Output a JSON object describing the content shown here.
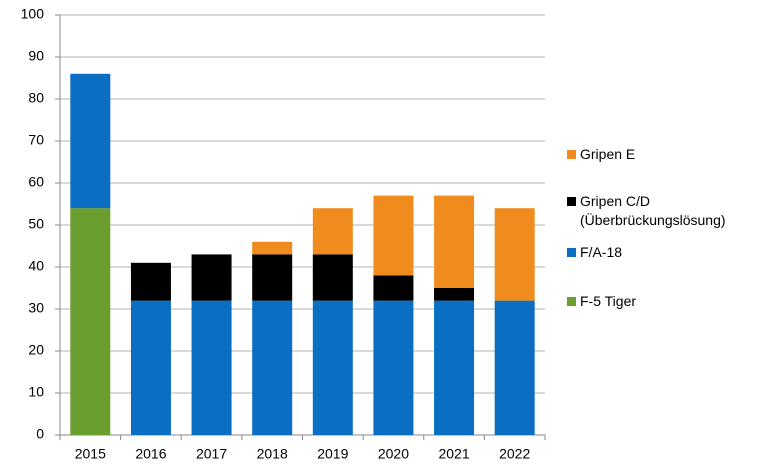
{
  "chart_data": {
    "type": "bar",
    "stacked": true,
    "categories": [
      "2015",
      "2016",
      "2017",
      "2018",
      "2019",
      "2020",
      "2021",
      "2022"
    ],
    "series": [
      {
        "name": "F-5 Tiger",
        "color": "#6a9e2f",
        "values": [
          54,
          0,
          0,
          0,
          0,
          0,
          0,
          0
        ]
      },
      {
        "name": "F/A-18",
        "color": "#0a6fc2",
        "values": [
          32,
          32,
          32,
          32,
          32,
          32,
          32,
          32
        ]
      },
      {
        "name": "Gripen C/D (Überbrückungslösung)",
        "color": "#000000",
        "values": [
          0,
          9,
          11,
          11,
          11,
          6,
          3,
          0
        ]
      },
      {
        "name": "Gripen E",
        "color": "#f08c1e",
        "values": [
          0,
          0,
          0,
          3,
          11,
          19,
          22,
          22
        ]
      }
    ],
    "ylim": [
      0,
      100
    ],
    "yticks": [
      0,
      10,
      20,
      30,
      40,
      50,
      60,
      70,
      80,
      90,
      100
    ],
    "grid": true,
    "legend": "right"
  }
}
